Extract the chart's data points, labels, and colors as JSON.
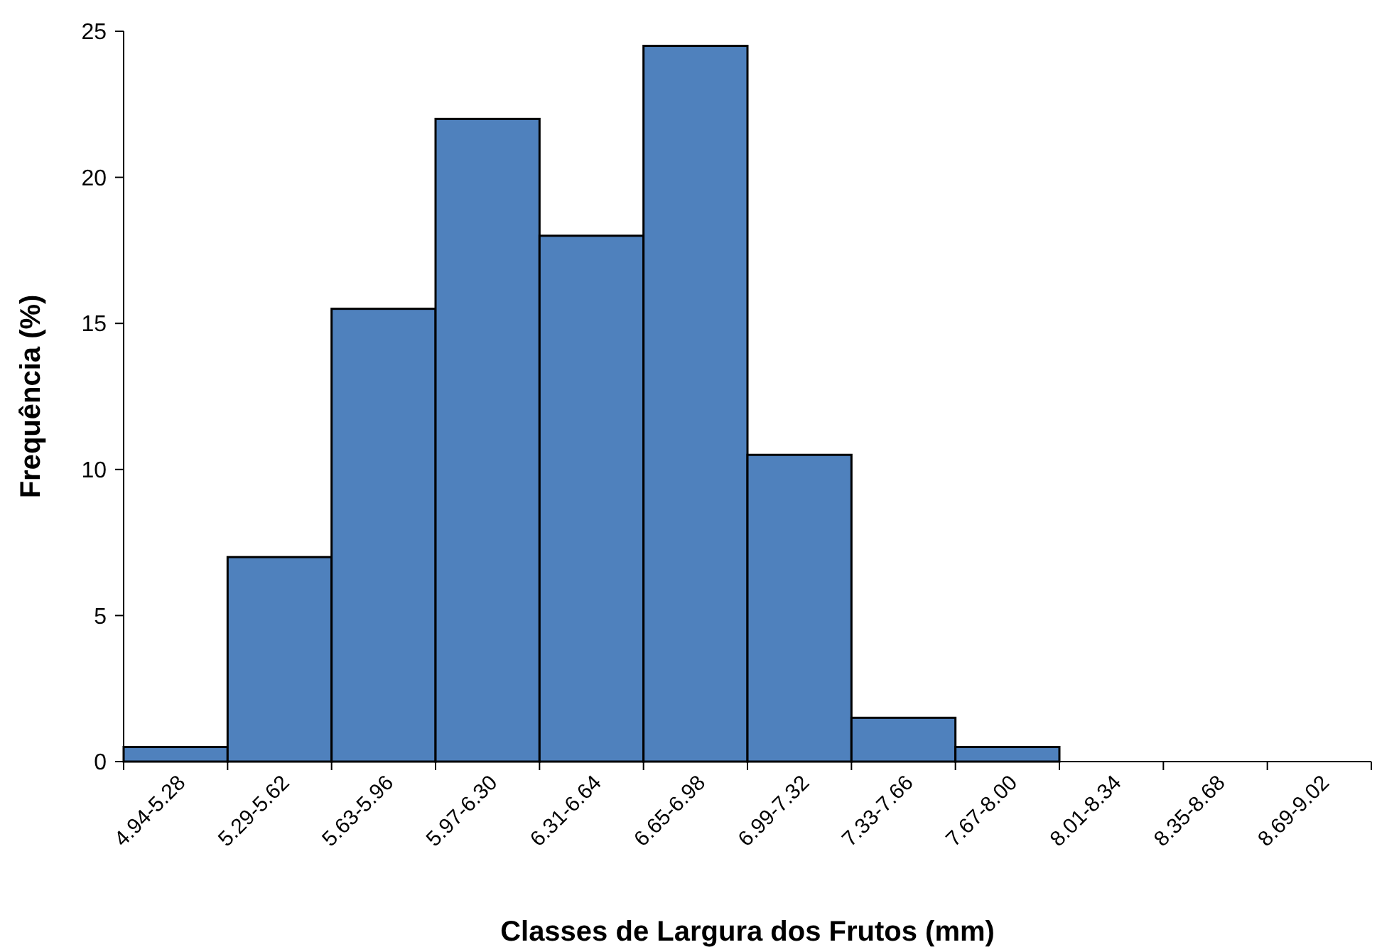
{
  "chart_data": {
    "type": "bar",
    "xlabel": "Classes de Largura dos Frutos (mm)",
    "ylabel": "Frequência (%)",
    "categories": [
      "4.94-5.28",
      "5.29-5.62",
      "5.63-5.96",
      "5.97-6.30",
      "6.31-6.64",
      "6.65-6.98",
      "6.99-7.32",
      "7.33-7.66",
      "7.67-8.00",
      "8.01-8.34",
      "8.35-8.68",
      "8.69-9.02"
    ],
    "values": [
      0.5,
      7,
      15.5,
      22,
      18,
      24.5,
      10.5,
      1.5,
      0.5,
      0,
      0,
      0
    ],
    "color": "#4f81bd",
    "ylim": [
      0,
      25
    ],
    "yticks": [
      0,
      5,
      10,
      15,
      20,
      25
    ],
    "grid": false
  }
}
